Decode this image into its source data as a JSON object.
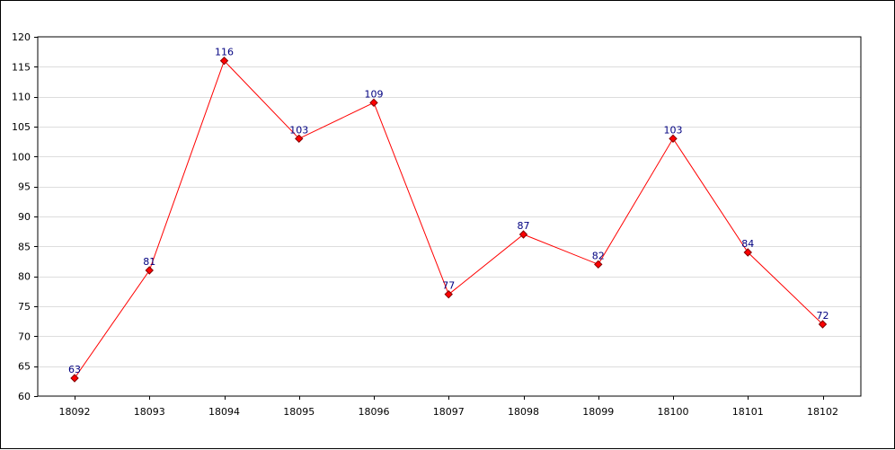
{
  "chart_data": {
    "type": "line",
    "title": "",
    "xlabel": "",
    "ylabel": "",
    "categories": [
      "18092",
      "18093",
      "18094",
      "18095",
      "18096",
      "18097",
      "18098",
      "18099",
      "18100",
      "18101",
      "18102"
    ],
    "series": [
      {
        "values": [
          63,
          81,
          116,
          103,
          109,
          77,
          87,
          82,
          103,
          84,
          72
        ]
      }
    ],
    "ylim": [
      60,
      120
    ],
    "y_ticks": [
      60,
      65,
      70,
      75,
      80,
      85,
      90,
      95,
      100,
      105,
      110,
      115,
      120
    ],
    "grid": true,
    "legend": "none",
    "data_labels": true,
    "colors": {
      "line": "#ff0000",
      "marker_fill": "#ff0000",
      "marker_stroke": "#800000",
      "label_text": "#000080",
      "grid": "#dddddd",
      "axis": "#000000"
    }
  }
}
